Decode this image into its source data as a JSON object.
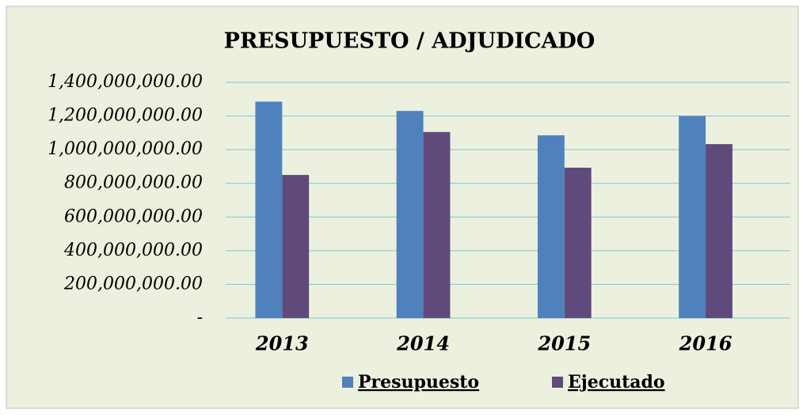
{
  "chart_data": {
    "type": "bar",
    "title": "PRESUPUESTO / ADJUDICADO",
    "categories": [
      "2013",
      "2014",
      "2015",
      "2016"
    ],
    "series": [
      {
        "name": "Presupuesto",
        "color": "#4f81bd",
        "values": [
          1285000000,
          1230000000,
          1085000000,
          1200000000
        ]
      },
      {
        "name": "Ejecutado",
        "color": "#604a7b",
        "values": [
          850000000,
          1105000000,
          893000000,
          1033000000
        ]
      }
    ],
    "ylim": [
      0,
      1400000000
    ],
    "yticks": [
      {
        "value": 0,
        "label": "-"
      },
      {
        "value": 200000000,
        "label": "200,000,000.00"
      },
      {
        "value": 400000000,
        "label": "400,000,000.00"
      },
      {
        "value": 600000000,
        "label": "600,000,000.00"
      },
      {
        "value": 800000000,
        "label": "800,000,000.00"
      },
      {
        "value": 1000000000,
        "label": "1,000,000,000.00"
      },
      {
        "value": 1200000000,
        "label": "1,200,000,000.00"
      },
      {
        "value": 1400000000,
        "label": "1,400,000,000.00"
      }
    ],
    "grid": true,
    "legend": "bottom"
  }
}
